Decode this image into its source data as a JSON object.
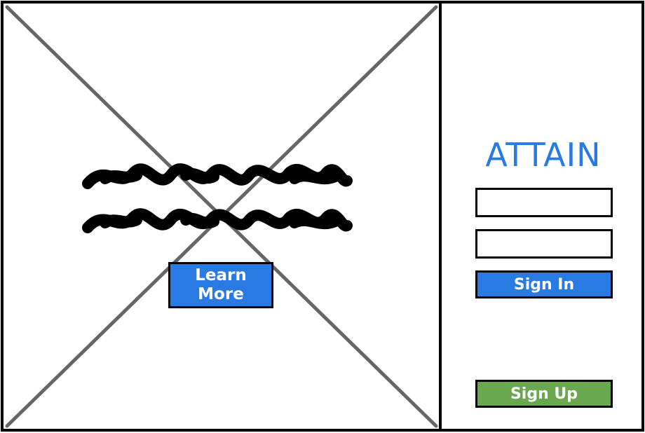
{
  "hero": {
    "image_placeholder_icon": "image-placeholder-icon",
    "text_placeholder_icon": "scribble-text-icon",
    "learn_more_label": "Learn\nMore"
  },
  "sidebar": {
    "brand": "ATTAIN",
    "username": {
      "value": "",
      "placeholder": ""
    },
    "password": {
      "value": "",
      "placeholder": ""
    },
    "sign_in_label": "Sign In",
    "sign_up_label": "Sign Up"
  },
  "colors": {
    "primary": "#2a7ae4",
    "success": "#6aa84f",
    "border": "#000000",
    "placeholder_lines": "#666666"
  }
}
